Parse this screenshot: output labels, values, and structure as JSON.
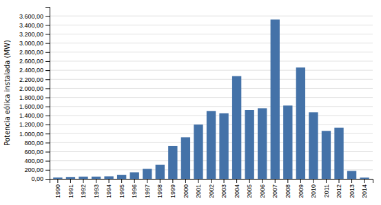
{
  "chart_data": {
    "type": "bar",
    "categories": [
      "1990",
      "1991",
      "1992",
      "1993",
      "1994",
      "1995",
      "1996",
      "1997",
      "1998",
      "1999",
      "2000",
      "2001",
      "2002",
      "2003",
      "2004",
      "2005",
      "2006",
      "2007",
      "2008",
      "2009",
      "2010",
      "2011",
      "2012",
      "2013",
      "2014"
    ],
    "values": [
      30,
      42,
      50,
      50,
      55,
      90,
      145,
      220,
      310,
      730,
      920,
      1200,
      1500,
      1450,
      2270,
      1520,
      1560,
      3520,
      1620,
      2460,
      1470,
      1060,
      1130,
      175,
      28
    ],
    "color": "#4472a8",
    "ylabel": "Potencia eólica instalada (MW)",
    "ylim": [
      0,
      3800
    ],
    "yticks": [
      {
        "value": 0,
        "label": "0,00"
      },
      {
        "value": 200,
        "label": "200,00"
      },
      {
        "value": 400,
        "label": "400,00"
      },
      {
        "value": 600,
        "label": "600,00"
      },
      {
        "value": 800,
        "label": "800,00"
      },
      {
        "value": 1000,
        "label": "1.000,00"
      },
      {
        "value": 1200,
        "label": "1.200,00"
      },
      {
        "value": 1400,
        "label": "1.400,00"
      },
      {
        "value": 1600,
        "label": "1.600,00"
      },
      {
        "value": 1800,
        "label": "1.800,00"
      },
      {
        "value": 2000,
        "label": "2.000,00"
      },
      {
        "value": 2200,
        "label": "2.200,00"
      },
      {
        "value": 2400,
        "label": "2.400,00"
      },
      {
        "value": 2600,
        "label": "2.600,00"
      },
      {
        "value": 2800,
        "label": "2.800,00"
      },
      {
        "value": 3000,
        "label": "3.000,00"
      },
      {
        "value": 3200,
        "label": "3.200,00"
      },
      {
        "value": 3400,
        "label": "3.400,00"
      },
      {
        "value": 3600,
        "label": "3.600,00"
      }
    ],
    "grid": true
  }
}
